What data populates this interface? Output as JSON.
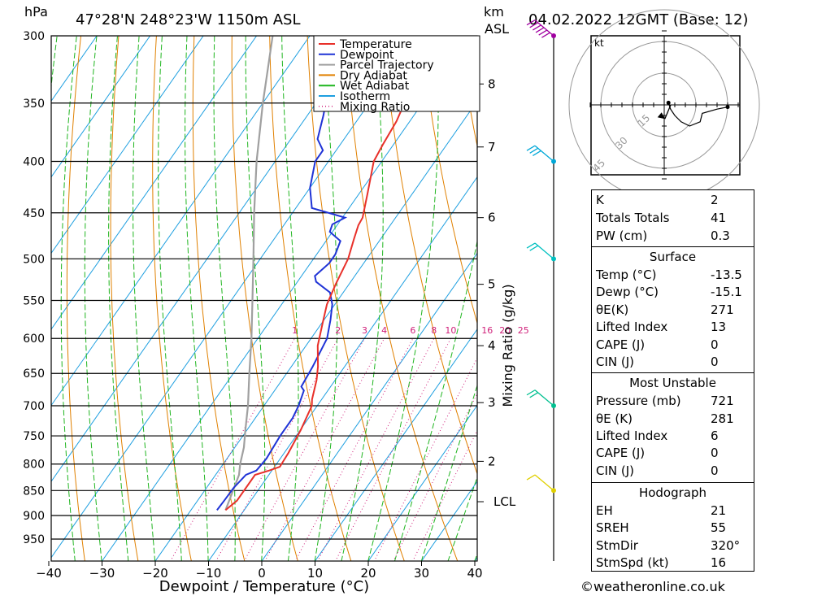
{
  "header": {
    "hpa_unit": "hPa",
    "location": "47°28'N  248°23'W  1150m  ASL",
    "km_unit": "km",
    "asl_unit": "ASL",
    "datetime": "04.02.2022  12GMT  (Base: 12)"
  },
  "chart_data": {
    "type": "skew-t",
    "xlabel": "Dewpoint / Temperature (°C)",
    "ylabel_right": "Mixing Ratio (g/kg)",
    "xlim": [
      -40,
      40
    ],
    "ylim_hpa": [
      990,
      300
    ],
    "x_ticks": [
      -40,
      -30,
      -20,
      -10,
      0,
      10,
      20,
      30,
      40
    ],
    "pressure_levels": [
      300,
      350,
      400,
      450,
      500,
      550,
      600,
      650,
      700,
      750,
      800,
      850,
      900,
      950
    ],
    "altitude_km": [
      {
        "label": "8",
        "p": 335
      },
      {
        "label": "7",
        "p": 387
      },
      {
        "label": "6",
        "p": 455
      },
      {
        "label": "5",
        "p": 530
      },
      {
        "label": "4",
        "p": 610
      },
      {
        "label": "3",
        "p": 695
      },
      {
        "label": "2",
        "p": 795
      },
      {
        "label": "LCL",
        "p": 872
      }
    ],
    "mixing_ratio_labels": [
      "1",
      "2",
      "3",
      "4",
      "6",
      "8",
      "10",
      "16",
      "20",
      "25"
    ],
    "mixing_ratios": [
      1,
      2,
      3,
      4,
      6,
      8,
      10,
      16,
      20,
      25
    ],
    "legend": [
      {
        "name": "Temperature",
        "color": "#e8302a",
        "style": "solid"
      },
      {
        "name": "Dewpoint",
        "color": "#1f33d6",
        "style": "solid"
      },
      {
        "name": "Parcel Trajectory",
        "color": "#a0a0a0",
        "style": "solid"
      },
      {
        "name": "Dry Adiabat",
        "color": "#e08000",
        "style": "solid"
      },
      {
        "name": "Wet Adiabat",
        "color": "#1fb51f",
        "style": "solid"
      },
      {
        "name": "Isotherm",
        "color": "#1e9fe0",
        "style": "solid"
      },
      {
        "name": "Mixing Ratio",
        "color": "#d0207a",
        "style": "dotted"
      }
    ],
    "temperature_profile": [
      [
        889,
        -13.5
      ],
      [
        870,
        -12.6
      ],
      [
        820,
        -12.6
      ],
      [
        812,
        -10.5
      ],
      [
        805,
        -9.0
      ],
      [
        780,
        -9.2
      ],
      [
        740,
        -9.9
      ],
      [
        700,
        -11.0
      ],
      [
        690,
        -11.8
      ],
      [
        660,
        -13.5
      ],
      [
        640,
        -15.0
      ],
      [
        610,
        -17.8
      ],
      [
        580,
        -19.8
      ],
      [
        555,
        -21.5
      ],
      [
        530,
        -22.5
      ],
      [
        500,
        -23.5
      ],
      [
        478,
        -25.0
      ],
      [
        463,
        -26.0
      ],
      [
        455,
        -26.2
      ],
      [
        430,
        -28.5
      ],
      [
        400,
        -31.5
      ],
      [
        385,
        -32.0
      ],
      [
        365,
        -32.5
      ],
      [
        345,
        -33.7
      ],
      [
        325,
        -35.8
      ],
      [
        318,
        -36.0
      ],
      [
        300,
        -37.4
      ]
    ],
    "dewpoint_profile": [
      [
        889,
        -15.1
      ],
      [
        870,
        -15.0
      ],
      [
        845,
        -14.9
      ],
      [
        820,
        -14.3
      ],
      [
        812,
        -12.9
      ],
      [
        790,
        -12.6
      ],
      [
        750,
        -13.0
      ],
      [
        720,
        -13.0
      ],
      [
        700,
        -13.5
      ],
      [
        676,
        -14.5
      ],
      [
        670,
        -15.5
      ],
      [
        640,
        -16.0
      ],
      [
        600,
        -17.0
      ],
      [
        575,
        -18.8
      ],
      [
        555,
        -20.5
      ],
      [
        540,
        -22.5
      ],
      [
        527,
        -26.5
      ],
      [
        520,
        -27.5
      ],
      [
        505,
        -26.5
      ],
      [
        495,
        -26.5
      ],
      [
        480,
        -27.3
      ],
      [
        470,
        -30.5
      ],
      [
        462,
        -31.0
      ],
      [
        455,
        -29.5
      ],
      [
        445,
        -37.0
      ],
      [
        425,
        -40.0
      ],
      [
        400,
        -42.5
      ],
      [
        390,
        -42.5
      ],
      [
        380,
        -45.0
      ],
      [
        360,
        -47.0
      ],
      [
        345,
        -48.8
      ],
      [
        335,
        -50.0
      ],
      [
        325,
        -48.5
      ],
      [
        310,
        -48.5
      ],
      [
        300,
        -50.5
      ]
    ],
    "parcel_profile": [
      [
        889,
        -13.5
      ],
      [
        872,
        -14.0
      ],
      [
        820,
        -15.6
      ],
      [
        800,
        -16.8
      ],
      [
        770,
        -18.3
      ],
      [
        740,
        -20.3
      ],
      [
        700,
        -23.0
      ],
      [
        650,
        -27.0
      ],
      [
        600,
        -31.2
      ],
      [
        550,
        -36.0
      ],
      [
        500,
        -41.3
      ],
      [
        450,
        -47.2
      ],
      [
        400,
        -53.5
      ],
      [
        350,
        -60.0
      ],
      [
        300,
        -67.0
      ]
    ],
    "wind_barbs": [
      {
        "p": 300,
        "color": "#a000a0",
        "speed_kt": 60
      },
      {
        "p": 400,
        "color": "#00a8d8",
        "speed_kt": 30
      },
      {
        "p": 500,
        "color": "#00c0c0",
        "speed_kt": 20
      },
      {
        "p": 700,
        "color": "#00c090",
        "speed_kt": 15
      },
      {
        "p": 850,
        "color": "#e0d000",
        "speed_kt": 5
      }
    ],
    "hodograph": {
      "unit": "kt",
      "ring_labels": [
        "15",
        "30",
        "45"
      ],
      "trace": [
        [
          2,
          -1
        ],
        [
          3,
          2
        ],
        [
          5,
          5
        ],
        [
          8,
          8
        ],
        [
          12,
          10
        ],
        [
          17,
          8
        ],
        [
          18,
          4
        ],
        [
          25,
          2
        ],
        [
          30,
          1
        ]
      ],
      "storm_motion_kt": 16,
      "storm_dir_deg": 320
    }
  },
  "indices": {
    "k": {
      "label": "K",
      "value": "2"
    },
    "tt": {
      "label": "Totals Totals",
      "value": "41"
    },
    "pw": {
      "label": "PW (cm)",
      "value": "0.3"
    }
  },
  "surface": {
    "title": "Surface",
    "temp": {
      "label": "Temp (°C)",
      "value": "-13.5"
    },
    "dewp": {
      "label": "Dewp (°C)",
      "value": "-15.1"
    },
    "theta_e": {
      "label": "θE(K)",
      "value": "271"
    },
    "li": {
      "label": "Lifted Index",
      "value": "13"
    },
    "cape": {
      "label": "CAPE (J)",
      "value": "0"
    },
    "cin": {
      "label": "CIN (J)",
      "value": "0"
    }
  },
  "most_unstable": {
    "title": "Most Unstable",
    "pressure": {
      "label": "Pressure (mb)",
      "value": "721"
    },
    "theta_e": {
      "label": "θE (K)",
      "value": "281"
    },
    "li": {
      "label": "Lifted Index",
      "value": "6"
    },
    "cape": {
      "label": "CAPE (J)",
      "value": "0"
    },
    "cin": {
      "label": "CIN (J)",
      "value": "0"
    }
  },
  "hodograph_table": {
    "title": "Hodograph",
    "eh": {
      "label": "EH",
      "value": "21"
    },
    "sreh": {
      "label": "SREH",
      "value": "55"
    },
    "stmdir": {
      "label": "StmDir",
      "value": "320°"
    },
    "stmspd": {
      "label": "StmSpd (kt)",
      "value": "16"
    }
  },
  "copyright": "©weatheronline.co.uk"
}
